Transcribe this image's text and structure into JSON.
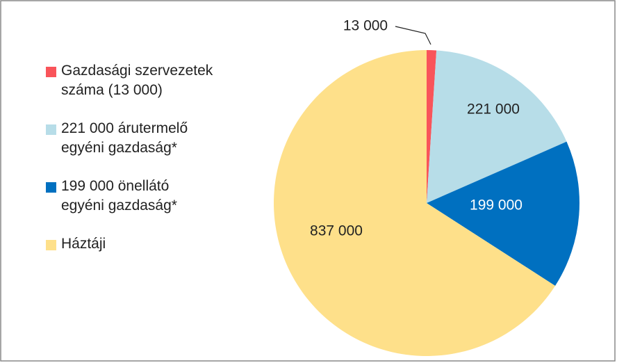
{
  "chart_data": {
    "type": "pie",
    "categories": [
      "Gazdasági szervezetek\nszáma (13 000)",
      "221 000 árutermelő\negyéni gazdaság*",
      "199 000 önellátó\negyéni gazdaság*",
      "Háztáji"
    ],
    "values": [
      13000,
      221000,
      199000,
      837000
    ],
    "value_labels": [
      "13 000",
      "221 000",
      "199 000",
      "837 000"
    ],
    "colors": [
      "#f9545a",
      "#b7dde8",
      "#0070c0",
      "#fee08a"
    ],
    "legend": "left"
  }
}
